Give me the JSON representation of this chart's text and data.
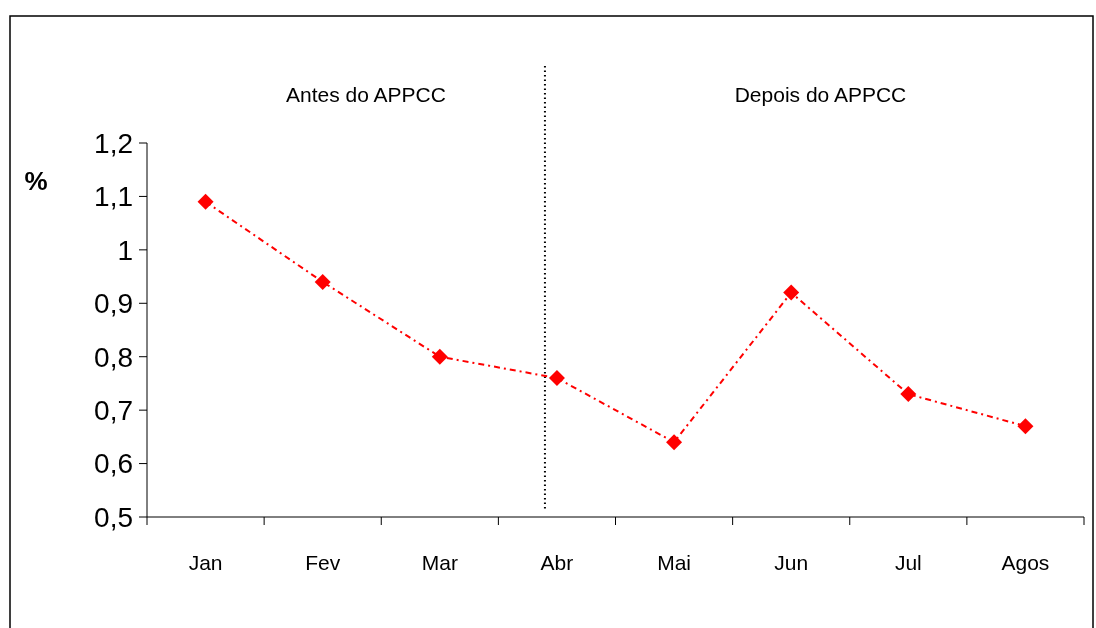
{
  "chart_data": {
    "type": "line",
    "ylabel": "%",
    "categories": [
      "Jan",
      "Fev",
      "Mar",
      "Abr",
      "Mai",
      "Jun",
      "Jul",
      "Agos"
    ],
    "series": [
      {
        "color": "#ff0000",
        "values": [
          1.09,
          0.94,
          0.8,
          0.76,
          0.64,
          0.92,
          0.73,
          0.67
        ]
      }
    ],
    "ylim": [
      0.5,
      1.2
    ],
    "yticks": [
      {
        "value": 0.5,
        "label": "0,5"
      },
      {
        "value": 0.6,
        "label": "0,6"
      },
      {
        "value": 0.7,
        "label": "0,7"
      },
      {
        "value": 0.8,
        "label": "0,8"
      },
      {
        "value": 0.9,
        "label": "0,9"
      },
      1,
      {
        "value": 1.1,
        "label": "1,1"
      },
      {
        "value": 1.2,
        "label": "1,2"
      }
    ],
    "ref_lines": [
      {
        "axis": "x",
        "value": "Abr",
        "color": "#000000",
        "line_style": "dotted"
      }
    ],
    "annotations": [
      "Antes do APPCC",
      "Depois do APPCC"
    ],
    "grid": false,
    "marker": "diamond",
    "line_style": "dashed"
  }
}
